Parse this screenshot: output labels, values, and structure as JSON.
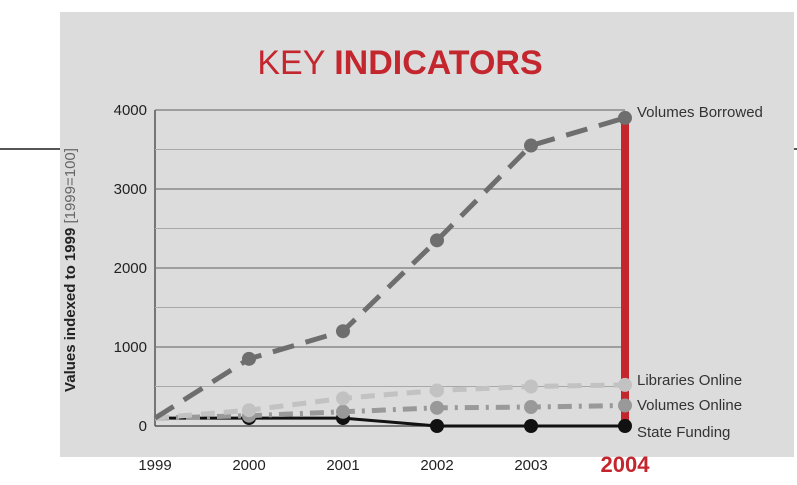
{
  "chart_data": {
    "type": "line",
    "title_part1": "KEY ",
    "title_part2": "INDICATORS",
    "ylabel_main": "Values indexed to 1999 ",
    "ylabel_note": "[1999=100]",
    "x": [
      "1999",
      "2000",
      "2001",
      "2002",
      "2003",
      "2004"
    ],
    "highlight_x": "2004",
    "yticks": [
      "0",
      "1000",
      "2000",
      "3000",
      "4000"
    ],
    "ylim": [
      0,
      4000
    ],
    "grid": true,
    "highlight_color": "#c4262e",
    "series": [
      {
        "name": "Volumes Borrowed",
        "values": [
          100,
          850,
          1200,
          2350,
          3550,
          3900
        ],
        "color": "#6e6e6e",
        "dash": "long-dash",
        "width": 5,
        "marker_r": 7
      },
      {
        "name": "Libraries Online",
        "values": [
          100,
          200,
          350,
          450,
          500,
          520
        ],
        "color": "#c2c2c2",
        "dash": "dash",
        "width": 5,
        "marker_r": 7
      },
      {
        "name": "Volumes Online",
        "values": [
          100,
          130,
          180,
          230,
          240,
          260
        ],
        "color": "#999999",
        "dash": "dash-dot",
        "width": 5,
        "marker_r": 7
      },
      {
        "name": "State Funding",
        "values": [
          100,
          100,
          100,
          0,
          0,
          0
        ],
        "color": "#111111",
        "dash": "solid",
        "width": 3,
        "marker_r": 7
      }
    ]
  }
}
